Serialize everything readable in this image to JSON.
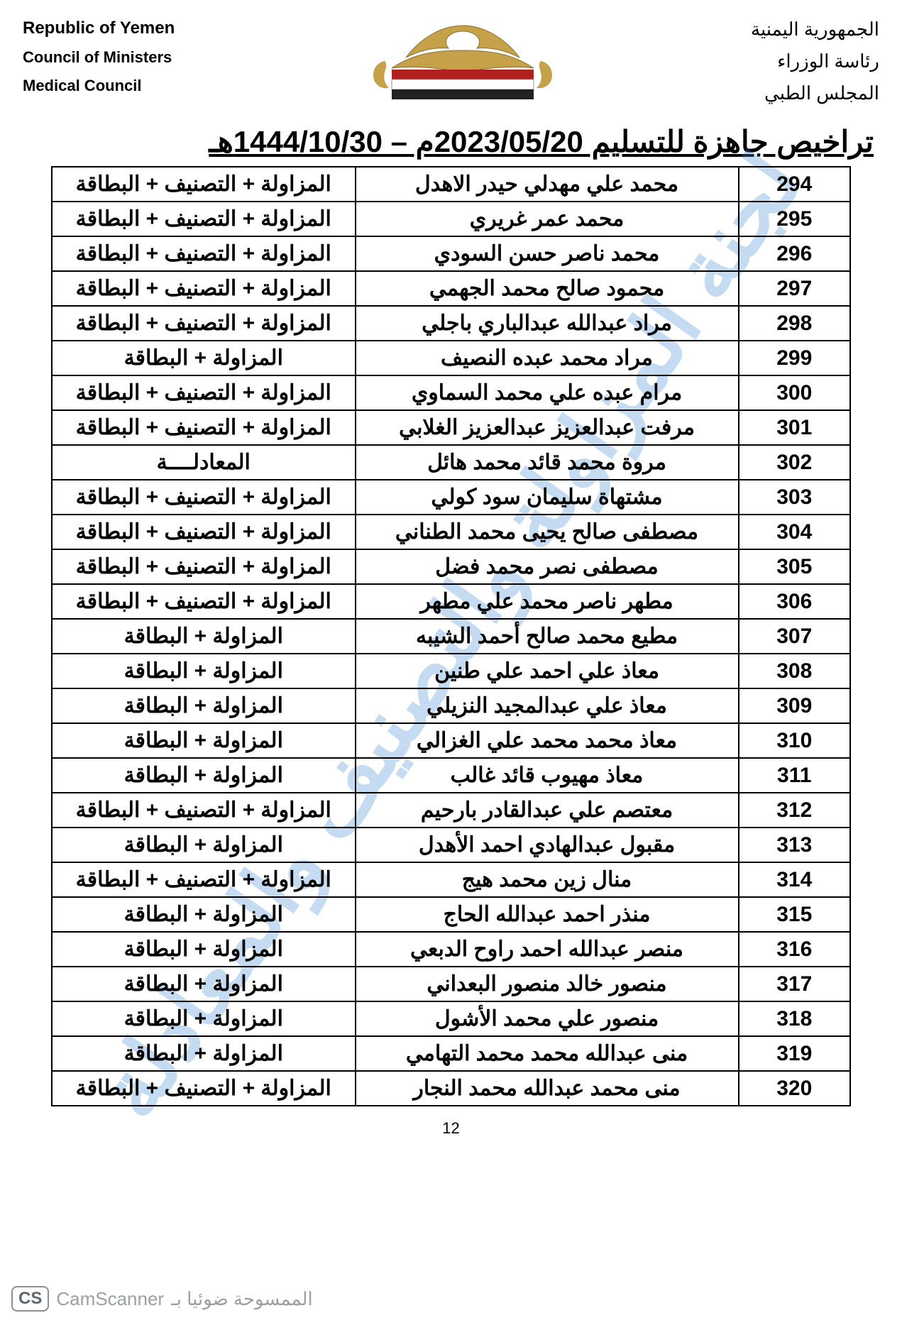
{
  "header": {
    "left": {
      "l1": "Republic of Yemen",
      "l2": "Council of Ministers",
      "l3": "Medical Council"
    },
    "right": {
      "l1": "الجمهورية اليمنية",
      "l2": "رئاسة الوزراء",
      "l3": "المجلس الطبي"
    }
  },
  "emblem": {
    "gold": "#c5a24a",
    "red": "#b0201e",
    "black": "#222222"
  },
  "title": "تراخيص جاهزة للتسليم 2023/05/20م – 1444/10/30هـ",
  "watermark": {
    "text": "لجنة المزاولة والتصنيف والمعادلة",
    "color": "#4a90d9",
    "opacity": 0.32
  },
  "table": {
    "rows": [
      {
        "id": "294",
        "name": "محمد علي مهدلي حيدر الاهدل",
        "docs": "المزاولة + التصنيف + البطاقة"
      },
      {
        "id": "295",
        "name": "محمد عمر غريري",
        "docs": "المزاولة + التصنيف + البطاقة"
      },
      {
        "id": "296",
        "name": "محمد ناصر حسن السودي",
        "docs": "المزاولة + التصنيف + البطاقة"
      },
      {
        "id": "297",
        "name": "محمود صالح محمد الجهمي",
        "docs": "المزاولة + التصنيف + البطاقة"
      },
      {
        "id": "298",
        "name": "مراد عبدالله عبدالباري باجلي",
        "docs": "المزاولة + التصنيف + البطاقة"
      },
      {
        "id": "299",
        "name": "مراد محمد عبده النصيف",
        "docs": "المزاولة + البطاقة"
      },
      {
        "id": "300",
        "name": "مرام عبده علي محمد السماوي",
        "docs": "المزاولة + التصنيف + البطاقة"
      },
      {
        "id": "301",
        "name": "مرفت عبدالعزيز عبدالعزيز الغلابي",
        "docs": "المزاولة + التصنيف + البطاقة"
      },
      {
        "id": "302",
        "name": "مروة محمد قائد محمد هائل",
        "docs": "المعادلــــة"
      },
      {
        "id": "303",
        "name": "مشتهاة سليمان سود كولي",
        "docs": "المزاولة + التصنيف + البطاقة"
      },
      {
        "id": "304",
        "name": "مصطفى صالح يحيى محمد الطناني",
        "docs": "المزاولة + التصنيف + البطاقة"
      },
      {
        "id": "305",
        "name": "مصطفى نصر محمد فضل",
        "docs": "المزاولة + التصنيف + البطاقة"
      },
      {
        "id": "306",
        "name": "مطهر ناصر محمد علي مطهر",
        "docs": "المزاولة + التصنيف + البطاقة"
      },
      {
        "id": "307",
        "name": "مطيع محمد صالح أحمد الشيبه",
        "docs": "المزاولة + البطاقة"
      },
      {
        "id": "308",
        "name": "معاذ علي احمد علي طنين",
        "docs": "المزاولة + البطاقة"
      },
      {
        "id": "309",
        "name": "معاذ علي عبدالمجيد النزيلي",
        "docs": "المزاولة + البطاقة"
      },
      {
        "id": "310",
        "name": "معاذ محمد محمد علي الغزالي",
        "docs": "المزاولة + البطاقة"
      },
      {
        "id": "311",
        "name": "معاذ مهيوب قائد غالب",
        "docs": "المزاولة + البطاقة"
      },
      {
        "id": "312",
        "name": "معتصم علي عبدالقادر بارحيم",
        "docs": "المزاولة + التصنيف + البطاقة"
      },
      {
        "id": "313",
        "name": "مقبول عبدالهادي احمد الأهدل",
        "docs": "المزاولة + البطاقة"
      },
      {
        "id": "314",
        "name": "منال زين محمد هيج",
        "docs": "المزاولة + التصنيف + البطاقة"
      },
      {
        "id": "315",
        "name": "منذر احمد عبدالله الحاج",
        "docs": "المزاولة + البطاقة"
      },
      {
        "id": "316",
        "name": "منصر عبدالله احمد راوح الدبعي",
        "docs": "المزاولة + البطاقة"
      },
      {
        "id": "317",
        "name": "منصور خالد منصور البعداني",
        "docs": "المزاولة + البطاقة"
      },
      {
        "id": "318",
        "name": "منصور علي محمد الأشول",
        "docs": "المزاولة + البطاقة"
      },
      {
        "id": "319",
        "name": "منى عبدالله محمد محمد التهامي",
        "docs": "المزاولة + البطاقة"
      },
      {
        "id": "320",
        "name": "منى محمد عبدالله محمد النجار",
        "docs": "المزاولة + التصنيف + البطاقة"
      }
    ]
  },
  "page_number": "12",
  "footer": {
    "cs": "CS",
    "cam": "CamScanner",
    "ar": "الممسوحة ضوئيا بـ"
  }
}
